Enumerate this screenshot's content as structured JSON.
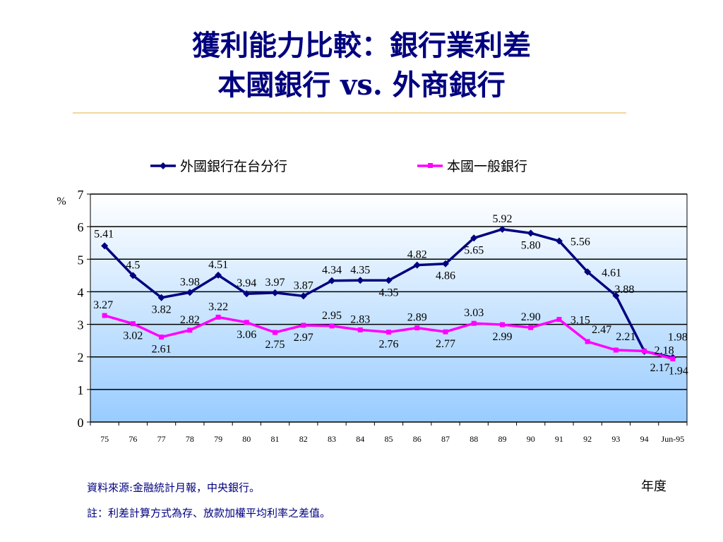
{
  "header": {
    "title_line1": "獲利能力比較：銀行業利差",
    "title_line2": "本國銀行 vs. 外商銀行"
  },
  "colors": {
    "title": "#00007f",
    "series_foreign": "#000080",
    "series_domestic": "#ff00ff",
    "plot_top": "#ffffff",
    "plot_bottom": "#99ccff",
    "rule": "#f3d79b"
  },
  "chart_data": {
    "type": "line",
    "title": "",
    "xlabel": "年度",
    "ylabel": "%",
    "ylim": [
      0,
      7
    ],
    "yticks": [
      0,
      1,
      2,
      3,
      4,
      5,
      6,
      7
    ],
    "grid": true,
    "legend_position": "top",
    "categories": [
      "75",
      "76",
      "77",
      "78",
      "79",
      "80",
      "81",
      "82",
      "83",
      "84",
      "85",
      "86",
      "87",
      "88",
      "89",
      "90",
      "91",
      "92",
      "93",
      "94",
      "Jun-95"
    ],
    "series": [
      {
        "name": "外國銀行在台分行",
        "marker": "diamond",
        "values": [
          5.41,
          4.5,
          3.82,
          3.98,
          4.51,
          3.94,
          3.97,
          3.87,
          4.34,
          4.35,
          4.35,
          4.82,
          4.86,
          5.65,
          5.92,
          5.8,
          5.56,
          4.61,
          3.88,
          2.17,
          1.98
        ],
        "labels": [
          "5.41",
          "4.5",
          "3.82",
          "3.98",
          "4.51",
          "3.94",
          "3.97",
          "3.87",
          "4.34",
          "4.35",
          "4.35",
          "4.82",
          "4.86",
          "5.65",
          "5.92",
          "5.80",
          "5.56",
          "4.61",
          "3.88",
          "2.17",
          "1.98"
        ]
      },
      {
        "name": "本國一般銀行",
        "marker": "square",
        "values": [
          3.27,
          3.02,
          2.61,
          2.82,
          3.22,
          3.06,
          2.75,
          2.97,
          2.95,
          2.83,
          2.76,
          2.89,
          2.77,
          3.03,
          2.99,
          2.9,
          3.15,
          2.47,
          2.21,
          2.18,
          1.94
        ],
        "labels": [
          "3.27",
          "3.02",
          "2.61",
          "2.82",
          "3.22",
          "3.06",
          "2.75",
          "2.97",
          "2.95",
          "2.83",
          "2.76",
          "2.89",
          "2.77",
          "3.03",
          "2.99",
          "2.90",
          "3.15",
          "2.47",
          "2.21",
          "2.18",
          "1.94"
        ]
      }
    ]
  },
  "footer": {
    "source": "資料來源:金融統計月報，中央銀行。",
    "note": "註：利差計算方式為存、放款加權平均利率之差值。"
  }
}
